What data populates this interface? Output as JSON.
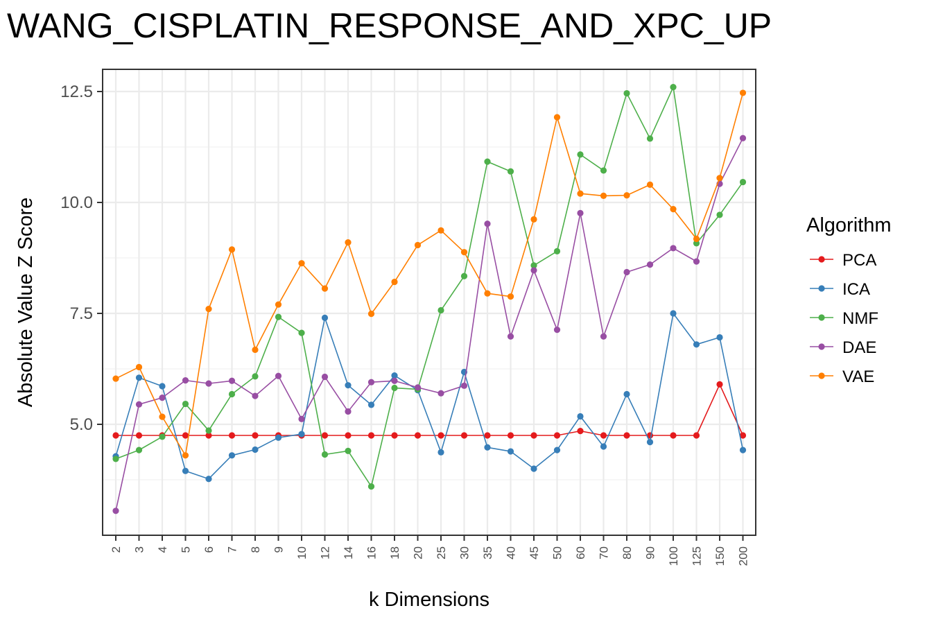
{
  "chart_data": {
    "type": "line",
    "title": "WANG_CISPLATIN_RESPONSE_AND_XPC_UP",
    "xlabel": "k Dimensions",
    "ylabel": "Absolute Value Z Score",
    "categories": [
      "2",
      "3",
      "4",
      "5",
      "6",
      "7",
      "8",
      "9",
      "10",
      "12",
      "14",
      "16",
      "18",
      "20",
      "25",
      "30",
      "35",
      "40",
      "45",
      "50",
      "60",
      "70",
      "80",
      "90",
      "100",
      "125",
      "150",
      "200"
    ],
    "ylim": [
      2.5,
      13.0
    ],
    "yticks": [
      5.0,
      7.5,
      10.0,
      12.5
    ],
    "ytick_labels": [
      "5.0",
      "7.5",
      "10.0",
      "12.5"
    ],
    "grid": true,
    "legend": {
      "title": "Algorithm",
      "placement": "right"
    },
    "series": [
      {
        "name": "PCA",
        "color": "#e41a1c",
        "values": [
          4.75,
          4.75,
          4.75,
          4.75,
          4.75,
          4.75,
          4.75,
          4.75,
          4.75,
          4.75,
          4.75,
          4.75,
          4.75,
          4.75,
          4.75,
          4.75,
          4.75,
          4.75,
          4.75,
          4.75,
          4.85,
          4.75,
          4.75,
          4.75,
          4.75,
          4.75,
          5.9,
          4.75
        ]
      },
      {
        "name": "ICA",
        "color": "#377eb8",
        "values": [
          4.28,
          6.05,
          5.86,
          3.95,
          3.77,
          4.3,
          4.43,
          4.7,
          4.78,
          7.4,
          5.88,
          5.44,
          6.1,
          5.77,
          4.37,
          6.18,
          4.48,
          4.39,
          4.0,
          4.42,
          5.18,
          4.5,
          5.68,
          4.6,
          7.5,
          6.8,
          6.96,
          4.42
        ]
      },
      {
        "name": "NMF",
        "color": "#4daf4a",
        "values": [
          4.22,
          4.42,
          4.72,
          5.46,
          4.86,
          5.68,
          6.08,
          7.42,
          7.06,
          4.32,
          4.4,
          3.6,
          5.82,
          5.79,
          7.57,
          8.34,
          10.92,
          10.7,
          8.58,
          8.9,
          11.08,
          10.72,
          12.46,
          11.44,
          12.6,
          9.08,
          9.72,
          10.46
        ]
      },
      {
        "name": "DAE",
        "color": "#984ea3",
        "values": [
          3.05,
          5.45,
          5.6,
          5.99,
          5.92,
          5.98,
          5.64,
          6.09,
          5.12,
          6.07,
          5.29,
          5.95,
          5.98,
          5.83,
          5.7,
          5.87,
          9.52,
          6.98,
          8.47,
          7.13,
          9.76,
          6.98,
          8.43,
          8.6,
          8.97,
          8.67,
          10.42,
          11.45
        ]
      },
      {
        "name": "VAE",
        "color": "#ff7f00",
        "values": [
          6.03,
          6.29,
          5.17,
          4.3,
          7.6,
          8.94,
          6.68,
          7.7,
          8.63,
          8.06,
          9.1,
          7.49,
          8.21,
          9.04,
          9.37,
          8.88,
          7.95,
          7.88,
          9.62,
          11.92,
          10.2,
          10.15,
          10.16,
          10.4,
          9.85,
          9.18,
          10.55,
          12.47
        ]
      }
    ]
  }
}
